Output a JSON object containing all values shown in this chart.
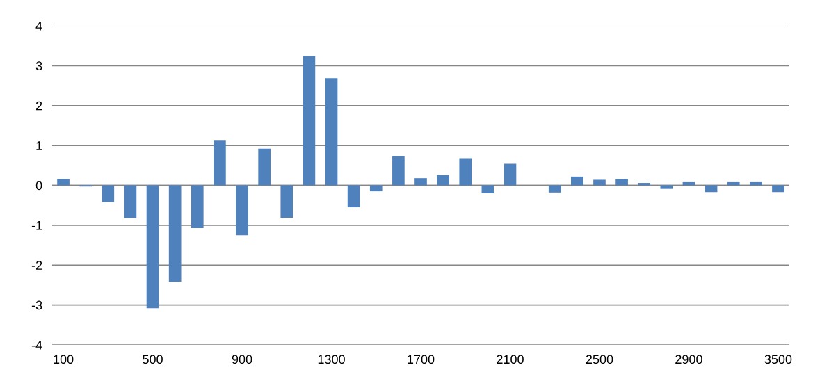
{
  "chart_data": {
    "type": "bar",
    "categories": [
      "100",
      null,
      null,
      null,
      "500",
      null,
      null,
      null,
      "900",
      null,
      null,
      null,
      "1300",
      null,
      null,
      null,
      "1700",
      null,
      null,
      null,
      "2100",
      null,
      null,
      null,
      "2500",
      null,
      null,
      null,
      "2900",
      null,
      null,
      null,
      "3500"
    ],
    "values": [
      0.16,
      -0.03,
      -0.42,
      -0.82,
      -3.08,
      -2.42,
      -1.07,
      1.12,
      -1.25,
      0.92,
      -0.81,
      3.24,
      2.69,
      -0.55,
      -0.15,
      0.73,
      0.18,
      0.26,
      0.68,
      -0.2,
      0.54,
      null,
      -0.18,
      0.22,
      0.14,
      0.16,
      0.06,
      -0.09,
      0.08,
      -0.17,
      0.08,
      0.08,
      -0.17
    ],
    "color": "#4f81bd",
    "ylim": [
      -4,
      4
    ],
    "yticks": [
      -4,
      -3,
      -2,
      -1,
      0,
      1,
      2,
      3,
      4
    ],
    "grid": "y"
  }
}
